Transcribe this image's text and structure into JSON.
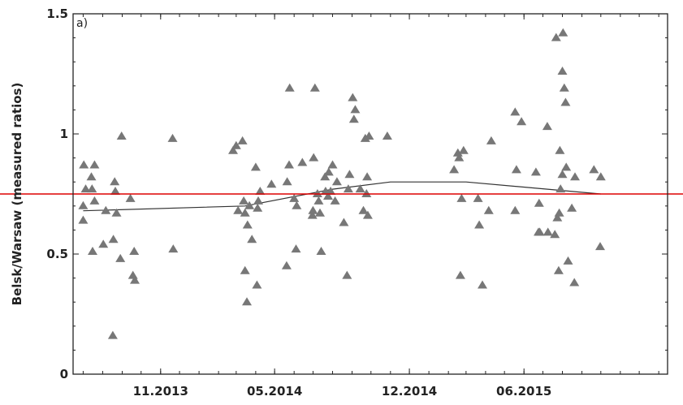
{
  "chart_data": {
    "type": "scatter",
    "panel_label": "a)",
    "title": "",
    "xlabel": "",
    "ylabel": "Belsk/Warsaw (measured ratios)",
    "x_ticks": [
      {
        "label": "11.2013",
        "x": "2013-11-01"
      },
      {
        "label": "05.2014",
        "x": "2014-05-01"
      },
      {
        "label": "12.2014",
        "x": "2014-12-01"
      },
      {
        "label": "06.2015",
        "x": "2015-06-01"
      }
    ],
    "y_ticks": [
      {
        "label": "0",
        "value": 0
      },
      {
        "label": "0.5",
        "value": 0.5
      },
      {
        "label": "1",
        "value": 1
      },
      {
        "label": "1.5",
        "value": 1.5
      }
    ],
    "xlim": [
      "2013-06-15",
      "2016-01-15"
    ],
    "ylim": [
      0,
      1.5
    ],
    "grid": false,
    "legend": "none",
    "colors": {
      "points": "#777777",
      "trend": "#333333",
      "reference_line": "#dd0000",
      "axes": "#222222"
    },
    "reference_line": {
      "y": 0.75
    },
    "trend_line": {
      "x": [
        "2013-07-01",
        "2014-03-15",
        "2014-08-01",
        "2014-11-01",
        "2015-03-01",
        "2015-10-01"
      ],
      "y": [
        0.68,
        0.7,
        0.77,
        0.8,
        0.8,
        0.75
      ]
    },
    "series": [
      {
        "points": [
          [
            "2013-07-01",
            0.64
          ],
          [
            "2013-07-01",
            0.7
          ],
          [
            "2013-07-02",
            0.87
          ],
          [
            "2013-07-05",
            0.77
          ],
          [
            "2013-07-14",
            0.82
          ],
          [
            "2013-07-15",
            0.77
          ],
          [
            "2013-07-16",
            0.51
          ],
          [
            "2013-07-19",
            0.87
          ],
          [
            "2013-07-19",
            0.72
          ],
          [
            "2013-08-02",
            0.54
          ],
          [
            "2013-08-06",
            0.68
          ],
          [
            "2013-08-17",
            0.16
          ],
          [
            "2013-08-18",
            0.56
          ],
          [
            "2013-08-20",
            0.8
          ],
          [
            "2013-08-21",
            0.76
          ],
          [
            "2013-08-23",
            0.67
          ],
          [
            "2013-08-29",
            0.48
          ],
          [
            "2013-08-31",
            0.99
          ],
          [
            "2013-09-14",
            0.73
          ],
          [
            "2013-09-18",
            0.41
          ],
          [
            "2013-09-20",
            0.51
          ],
          [
            "2013-09-21",
            0.39
          ],
          [
            "2013-11-20",
            0.98
          ],
          [
            "2013-11-21",
            0.52
          ],
          [
            "2014-02-24",
            0.93
          ],
          [
            "2014-03-01",
            0.95
          ],
          [
            "2014-03-04",
            0.68
          ],
          [
            "2014-03-11",
            0.97
          ],
          [
            "2014-03-13",
            0.72
          ],
          [
            "2014-03-15",
            0.43
          ],
          [
            "2014-03-15",
            0.67
          ],
          [
            "2014-03-18",
            0.3
          ],
          [
            "2014-03-19",
            0.62
          ],
          [
            "2014-03-22",
            0.7
          ],
          [
            "2014-03-26",
            0.56
          ],
          [
            "2014-04-01",
            0.86
          ],
          [
            "2014-04-03",
            0.37
          ],
          [
            "2014-04-04",
            0.69
          ],
          [
            "2014-04-05",
            0.72
          ],
          [
            "2014-04-08",
            0.76
          ],
          [
            "2014-04-26",
            0.79
          ],
          [
            "2014-05-20",
            0.45
          ],
          [
            "2014-05-21",
            0.8
          ],
          [
            "2014-05-24",
            0.87
          ],
          [
            "2014-05-25",
            1.19
          ],
          [
            "2014-06-01",
            0.73
          ],
          [
            "2014-06-04",
            0.52
          ],
          [
            "2014-06-05",
            0.7
          ],
          [
            "2014-06-14",
            0.88
          ],
          [
            "2014-06-30",
            0.66
          ],
          [
            "2014-07-01",
            0.68
          ],
          [
            "2014-07-02",
            0.9
          ],
          [
            "2014-07-04",
            1.19
          ],
          [
            "2014-07-08",
            0.75
          ],
          [
            "2014-07-10",
            0.72
          ],
          [
            "2014-07-12",
            0.67
          ],
          [
            "2014-07-14",
            0.51
          ],
          [
            "2014-07-20",
            0.82
          ],
          [
            "2014-07-21",
            0.76
          ],
          [
            "2014-07-25",
            0.74
          ],
          [
            "2014-07-26",
            0.84
          ],
          [
            "2014-07-29",
            0.76
          ],
          [
            "2014-08-01",
            0.87
          ],
          [
            "2014-08-05",
            0.72
          ],
          [
            "2014-08-08",
            0.8
          ],
          [
            "2014-08-19",
            0.63
          ],
          [
            "2014-08-24",
            0.41
          ],
          [
            "2014-08-26",
            0.77
          ],
          [
            "2014-08-28",
            0.83
          ],
          [
            "2014-09-02",
            1.15
          ],
          [
            "2014-09-04",
            1.06
          ],
          [
            "2014-09-06",
            1.1
          ],
          [
            "2014-09-14",
            0.77
          ],
          [
            "2014-09-19",
            0.68
          ],
          [
            "2014-09-22",
            0.98
          ],
          [
            "2014-09-24",
            0.75
          ],
          [
            "2014-09-25",
            0.82
          ],
          [
            "2014-09-26",
            0.66
          ],
          [
            "2014-09-28",
            0.99
          ],
          [
            "2014-10-27",
            0.99
          ],
          [
            "2015-02-10",
            0.85
          ],
          [
            "2015-02-16",
            0.92
          ],
          [
            "2015-02-18",
            0.9
          ],
          [
            "2015-02-20",
            0.41
          ],
          [
            "2015-02-22",
            0.73
          ],
          [
            "2015-02-25",
            0.93
          ],
          [
            "2015-03-20",
            0.73
          ],
          [
            "2015-03-22",
            0.62
          ],
          [
            "2015-03-27",
            0.37
          ],
          [
            "2015-04-06",
            0.68
          ],
          [
            "2015-04-10",
            0.97
          ],
          [
            "2015-05-18",
            0.68
          ],
          [
            "2015-05-18",
            1.09
          ],
          [
            "2015-05-20",
            0.85
          ],
          [
            "2015-05-28",
            1.05
          ],
          [
            "2015-06-20",
            0.84
          ],
          [
            "2015-06-24",
            0.59
          ],
          [
            "2015-06-25",
            0.71
          ],
          [
            "2015-06-26",
            0.59
          ],
          [
            "2015-07-08",
            1.03
          ],
          [
            "2015-07-09",
            0.59
          ],
          [
            "2015-07-20",
            0.58
          ],
          [
            "2015-07-22",
            1.4
          ],
          [
            "2015-07-24",
            0.65
          ],
          [
            "2015-07-26",
            0.43
          ],
          [
            "2015-07-27",
            0.67
          ],
          [
            "2015-07-28",
            0.93
          ],
          [
            "2015-07-29",
            0.77
          ],
          [
            "2015-08-01",
            1.26
          ],
          [
            "2015-08-01",
            0.83
          ],
          [
            "2015-08-02",
            1.42
          ],
          [
            "2015-08-04",
            1.19
          ],
          [
            "2015-08-06",
            1.13
          ],
          [
            "2015-08-07",
            0.86
          ],
          [
            "2015-08-10",
            0.47
          ],
          [
            "2015-08-16",
            0.69
          ],
          [
            "2015-08-20",
            0.38
          ],
          [
            "2015-08-21",
            0.82
          ],
          [
            "2015-09-20",
            0.85
          ],
          [
            "2015-09-30",
            0.53
          ],
          [
            "2015-10-01",
            0.82
          ]
        ]
      }
    ]
  }
}
